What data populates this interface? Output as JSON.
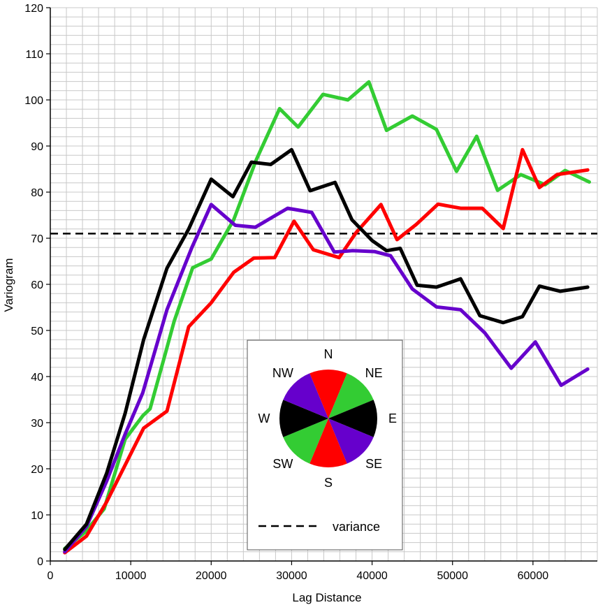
{
  "chart_data": {
    "type": "line",
    "title": "",
    "xlabel": "Lag Distance",
    "ylabel": "Variogram",
    "xlim": [
      0,
      68000
    ],
    "ylim": [
      0,
      120
    ],
    "x_ticks": [
      0,
      10000,
      20000,
      30000,
      40000,
      50000,
      60000
    ],
    "y_ticks": [
      0,
      10,
      20,
      30,
      40,
      50,
      60,
      70,
      80,
      90,
      100,
      110,
      120
    ],
    "grid": true,
    "x_minor_step": 2000,
    "y_minor_step": 2,
    "variance": 71,
    "series": [
      {
        "color": "#33cc33",
        "x": [
          1800,
          4300,
          6700,
          9300,
          11500,
          12400,
          14300,
          15400,
          17700,
          20000,
          22800,
          25600,
          28500,
          30800,
          33900,
          37000,
          39600,
          41800,
          45000,
          48000,
          50500,
          53000,
          55600,
          58500,
          61500,
          64000,
          67000
        ],
        "values": [
          2.7,
          6.2,
          11.3,
          26.4,
          31.5,
          33.0,
          45.0,
          52.0,
          63.6,
          65.5,
          74.0,
          87.0,
          98.1,
          94.1,
          101.2,
          100.0,
          103.9,
          93.4,
          96.5,
          93.6,
          84.5,
          92.1,
          80.4,
          83.8,
          81.6,
          84.7,
          82.2
        ]
      },
      {
        "color": "#ff0000",
        "x": [
          1800,
          4500,
          7000,
          9300,
          11600,
          14500,
          17200,
          20000,
          22800,
          25300,
          27900,
          30300,
          32700,
          35900,
          38000,
          41100,
          43100,
          45500,
          48200,
          51000,
          53700,
          56300,
          58700,
          60800,
          63000,
          66800
        ],
        "values": [
          1.8,
          5.4,
          12.8,
          20.8,
          28.8,
          32.5,
          50.8,
          56.0,
          62.6,
          65.7,
          65.8,
          73.7,
          67.5,
          65.8,
          71.2,
          77.3,
          69.7,
          73.0,
          77.4,
          76.5,
          76.5,
          72.1,
          89.2,
          81.0,
          83.8,
          84.8
        ]
      },
      {
        "color": "#6600cc",
        "x": [
          1800,
          4500,
          7000,
          9300,
          11500,
          14500,
          17600,
          20000,
          23000,
          25500,
          29500,
          32500,
          35300,
          37600,
          40300,
          42300,
          45000,
          48000,
          51000,
          54000,
          57300,
          60300,
          63500,
          66800
        ],
        "values": [
          2.0,
          7.5,
          17.3,
          27.5,
          36.5,
          54.5,
          68.0,
          77.3,
          72.8,
          72.4,
          76.5,
          75.6,
          67.0,
          67.3,
          67.1,
          66.2,
          59.0,
          55.1,
          54.5,
          49.5,
          41.8,
          47.5,
          38.1,
          41.6
        ]
      },
      {
        "color": "#000000",
        "x": [
          1800,
          4500,
          7000,
          9300,
          11600,
          14500,
          17200,
          20000,
          22700,
          25000,
          27400,
          30000,
          32300,
          35400,
          37500,
          40000,
          41800,
          43500,
          45600,
          48000,
          51000,
          53400,
          56300,
          58700,
          60800,
          63400,
          66800
        ],
        "values": [
          2.5,
          8.0,
          19.0,
          32.0,
          48.0,
          63.5,
          72.0,
          82.8,
          79.0,
          86.5,
          86.0,
          89.2,
          80.3,
          82.1,
          74.0,
          69.5,
          67.3,
          67.8,
          59.8,
          59.4,
          61.2,
          53.2,
          51.7,
          53.0,
          59.6,
          58.5,
          59.4
        ]
      }
    ],
    "legend": {
      "placement": "bottom-center",
      "directions": [
        {
          "label": "N",
          "angle": 0,
          "color": "#ff0000"
        },
        {
          "label": "NE",
          "angle": 45,
          "color": "#33cc33"
        },
        {
          "label": "E",
          "angle": 90,
          "color": "#000000"
        },
        {
          "label": "SE",
          "angle": 135,
          "color": "#6600cc"
        },
        {
          "label": "S",
          "angle": 180,
          "color": "#ff0000"
        },
        {
          "label": "SW",
          "angle": 225,
          "color": "#33cc33"
        },
        {
          "label": "W",
          "angle": 270,
          "color": "#000000"
        },
        {
          "label": "NW",
          "angle": 315,
          "color": "#6600cc"
        }
      ],
      "variance_label": "variance"
    }
  }
}
